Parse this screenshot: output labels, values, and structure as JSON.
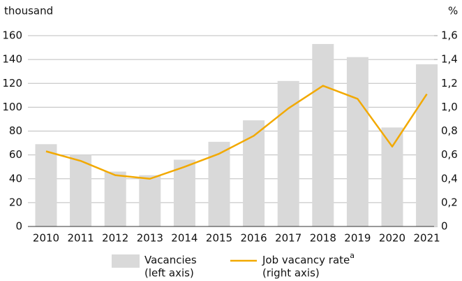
{
  "chart_data": {
    "type": "bar",
    "y_label": "thousand",
    "y2_label": "%",
    "categories": [
      "2010",
      "2011",
      "2012",
      "2013",
      "2014",
      "2015",
      "2016",
      "2017",
      "2018",
      "2019",
      "2020",
      "2021"
    ],
    "series": [
      {
        "name": "Vacancies",
        "legend_note": "(left axis)",
        "type": "bar",
        "color": "#d9d9d9",
        "values": [
          69,
          60,
          46,
          43,
          56,
          71,
          89,
          122,
          153,
          142,
          83,
          136
        ]
      },
      {
        "name": "Job vacancy rate",
        "footnote_marker": "a",
        "legend_note": "(right axis)",
        "type": "line",
        "axis": "y2",
        "color": "#f2a900",
        "values": [
          0.63,
          0.55,
          0.43,
          0.4,
          0.5,
          0.61,
          0.76,
          0.99,
          1.18,
          1.07,
          0.67,
          1.11
        ]
      }
    ],
    "ylim": [
      0,
      160
    ],
    "yticks": [
      0,
      20,
      40,
      60,
      80,
      100,
      120,
      140,
      160
    ],
    "y2lim": [
      0,
      1.6
    ],
    "y2ticks": [
      0,
      {
        "value": 0.2,
        "label": "0,2"
      },
      {
        "value": 0.4,
        "label": "0,4"
      },
      {
        "value": 0.6,
        "label": "0,6"
      },
      {
        "value": 0.8,
        "label": "0,8"
      },
      {
        "value": 1.0,
        "label": "1,0"
      },
      {
        "value": 1.2,
        "label": "1,2"
      },
      {
        "value": 1.4,
        "label": "1,4"
      },
      {
        "value": 1.6,
        "label": "1,6"
      }
    ],
    "grid": true
  }
}
